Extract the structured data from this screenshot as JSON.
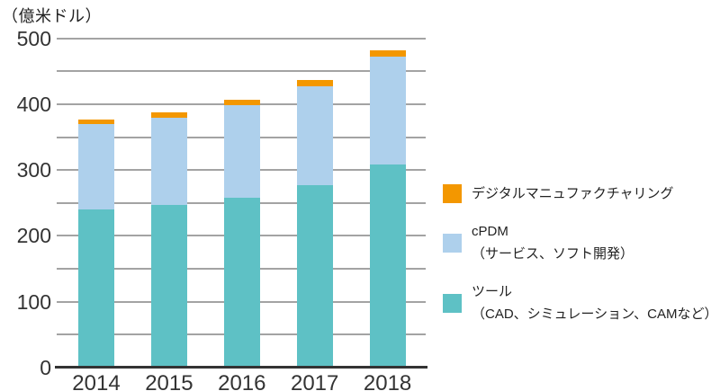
{
  "chart_data": {
    "type": "bar",
    "stacked": true,
    "title": "",
    "y_axis_unit": "（億米ドル）",
    "unit": "億米ドル",
    "categories": [
      "2014",
      "2015",
      "2016",
      "2017",
      "2018"
    ],
    "series": [
      {
        "key": "tool",
        "name": "ツール（CAD、シミュレーション、CAMなど）",
        "color": "#5ec1c5",
        "values": [
          240,
          247,
          258,
          277,
          308
        ]
      },
      {
        "key": "cpdm",
        "name": "cPDM（サービス、ソフト開発）",
        "color": "#aed0ec",
        "values": [
          130,
          133,
          141,
          150,
          164
        ]
      },
      {
        "key": "digital_mfg",
        "name": "デジタルマニュファクチャリング",
        "color": "#f39700",
        "values": [
          7,
          8,
          8,
          10,
          10
        ]
      }
    ],
    "totals": [
      377,
      388,
      407,
      437,
      482
    ],
    "ylim": [
      0,
      500
    ],
    "y_major_ticks": [
      0,
      100,
      200,
      300,
      400,
      500
    ],
    "y_minor_step": 50,
    "grid": true,
    "legend_position": "right",
    "colors": {
      "gridline": "#a3a3a3",
      "baseline": "#333333",
      "text": "#333333"
    }
  },
  "legend": {
    "items": [
      {
        "key": "digital_mfg",
        "color": "#f39700",
        "label_lines": [
          "デジタルマニュファクチャリング",
          ""
        ]
      },
      {
        "key": "cpdm",
        "color": "#aed0ec",
        "label_lines": [
          "cPDM",
          "（サービス、ソフト開発）"
        ]
      },
      {
        "key": "tool",
        "color": "#5ec1c5",
        "label_lines": [
          "ツール",
          "（CAD、シミュレーション、CAMなど）"
        ]
      }
    ]
  }
}
